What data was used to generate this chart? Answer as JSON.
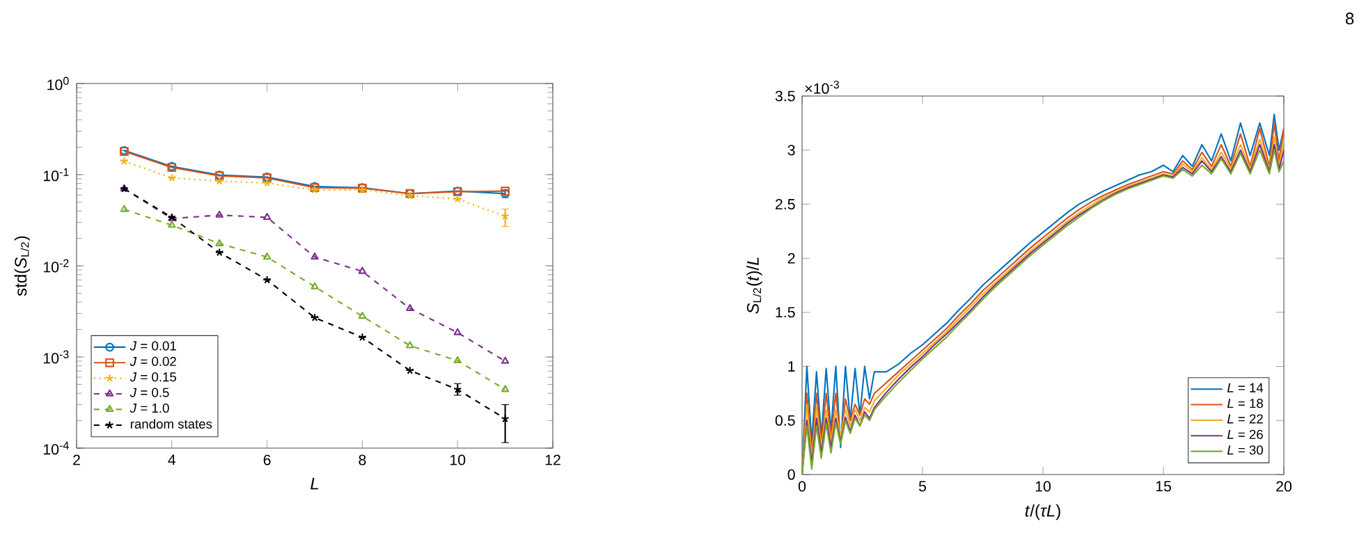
{
  "chart_data": [
    {
      "type": "line",
      "x": [
        3,
        4,
        5,
        6,
        7,
        8,
        9,
        10,
        11
      ],
      "log": "y",
      "legend": "bottom left",
      "xlim": [
        2,
        12
      ],
      "xticks": [
        2,
        4,
        6,
        8,
        10,
        12
      ],
      "ylim": [
        0.0001,
        1
      ],
      "yticks": [
        {
          "value": 0.0001,
          "label": "10$^{-4}$"
        },
        {
          "value": 0.001,
          "label": "10$^{-3}$"
        },
        {
          "value": 0.01,
          "label": "10$^{-2}$"
        },
        {
          "value": 0.1,
          "label": "10$^{-1}$"
        },
        {
          "value": 1,
          "label": "10$^{0}$"
        }
      ],
      "xlabel": "*L*",
      "ylabel": "std(*S*$_{L/2}$)",
      "series": [
        {
          "name": "*J* = 0.01",
          "color": "#0072bd",
          "marker": "circle",
          "line_style": "solid",
          "values": [
            0.184,
            0.123,
            0.099,
            0.094,
            0.074,
            0.072,
            0.062,
            0.066,
            0.062
          ],
          "errors": [
            null,
            null,
            null,
            null,
            null,
            null,
            null,
            null,
            [
              0.056,
              0.068
            ]
          ]
        },
        {
          "name": "*J* = 0.02",
          "color": "#d95319",
          "marker": "square",
          "line_style": "solid",
          "values": [
            0.18,
            0.12,
            0.097,
            0.092,
            0.072,
            0.071,
            0.062,
            0.065,
            0.066
          ]
        },
        {
          "name": "*J* = 0.15",
          "color": "#edb120",
          "marker": "cross",
          "line_style": "dotted",
          "values": [
            0.141,
            0.092,
            0.085,
            0.081,
            0.068,
            0.068,
            0.059,
            0.054,
            0.035
          ],
          "errors": [
            null,
            null,
            null,
            null,
            null,
            null,
            null,
            null,
            [
              0.027,
              0.042
            ]
          ]
        },
        {
          "name": "*J* = 0.5",
          "color": "#7e2f8e",
          "marker": "triangle",
          "line_style": "dashed",
          "values": [
            0.07,
            0.033,
            0.036,
            0.034,
            0.0125,
            0.0087,
            0.0034,
            0.00185,
            0.0009
          ]
        },
        {
          "name": "*J* = 1.0",
          "color": "#77ac30",
          "marker": "triangle",
          "line_style": "dashed",
          "values": [
            0.0415,
            0.0279,
            0.0175,
            0.0125,
            0.0059,
            0.0028,
            0.00133,
            0.00091,
            0.00044
          ]
        },
        {
          "name": "random states",
          "color": "#000000",
          "marker": "cross",
          "line_style": "dashed",
          "values": [
            0.07,
            0.034,
            0.014,
            0.007,
            0.0027,
            0.00164,
            0.00071,
            0.00044,
            0.00021
          ],
          "errors": [
            null,
            null,
            null,
            null,
            null,
            null,
            null,
            [
              0.00038,
              0.00051
            ],
            [
              0.000115,
              0.0003
            ]
          ]
        }
      ]
    },
    {
      "type": "line",
      "legend": "bottom right",
      "xlim": [
        0,
        20
      ],
      "xticks": [
        0,
        5,
        10,
        15,
        20
      ],
      "ylim": [
        0,
        3.5
      ],
      "yticks": [
        0,
        0.5,
        1,
        1.5,
        2,
        2.5,
        3,
        3.5
      ],
      "xlabel": "*t*/(*τL*)",
      "ylabel": "*S*$_{L/2}$(*t*)/*L*",
      "annotations": [
        "×10$^{-3}$",
        "8"
      ],
      "x": [
        0,
        0.2,
        0.4,
        0.6,
        0.8,
        1.0,
        1.2,
        1.4,
        1.6,
        1.8,
        2.0,
        2.2,
        2.4,
        2.6,
        2.8,
        3.0,
        3.5,
        4,
        4.5,
        5,
        5.5,
        6,
        6.5,
        7,
        7.5,
        8,
        8.5,
        9,
        9.5,
        10,
        10.5,
        11,
        11.5,
        12,
        12.5,
        13,
        13.5,
        14,
        14.5,
        15,
        15.4,
        15.8,
        16.2,
        16.6,
        17,
        17.4,
        17.8,
        18.2,
        18.6,
        19,
        19.4,
        19.6,
        19.8,
        20
      ],
      "series": [
        {
          "name": "*L* = 14",
          "color": "#0072bd",
          "values": [
            0,
            1.0,
            0.3,
            0.95,
            0.35,
            0.98,
            0.4,
            1.0,
            0.25,
            1.0,
            0.5,
            0.98,
            0.55,
            1.0,
            0.7,
            0.95,
            0.95,
            1.02,
            1.12,
            1.2,
            1.3,
            1.4,
            1.52,
            1.63,
            1.75,
            1.85,
            1.95,
            2.05,
            2.15,
            2.24,
            2.33,
            2.42,
            2.5,
            2.56,
            2.62,
            2.67,
            2.72,
            2.77,
            2.8,
            2.86,
            2.8,
            2.95,
            2.85,
            3.05,
            2.9,
            3.15,
            2.9,
            3.25,
            2.95,
            3.25,
            2.95,
            3.33,
            3.0,
            3.2
          ]
        },
        {
          "name": "*L* = 18",
          "color": "#d95319",
          "values": [
            0,
            0.75,
            0.2,
            0.75,
            0.3,
            0.75,
            0.35,
            0.75,
            0.3,
            0.7,
            0.5,
            0.65,
            0.55,
            0.7,
            0.65,
            0.75,
            0.85,
            0.95,
            1.05,
            1.15,
            1.25,
            1.35,
            1.47,
            1.58,
            1.7,
            1.8,
            1.9,
            2.0,
            2.1,
            2.19,
            2.28,
            2.37,
            2.45,
            2.52,
            2.58,
            2.63,
            2.68,
            2.72,
            2.76,
            2.8,
            2.78,
            2.9,
            2.82,
            2.98,
            2.85,
            3.05,
            2.85,
            3.15,
            2.85,
            3.2,
            2.85,
            3.25,
            2.9,
            3.2
          ]
        },
        {
          "name": "*L* = 22",
          "color": "#edb120",
          "values": [
            0,
            0.65,
            0.15,
            0.62,
            0.25,
            0.6,
            0.3,
            0.6,
            0.35,
            0.6,
            0.45,
            0.6,
            0.5,
            0.62,
            0.58,
            0.68,
            0.8,
            0.92,
            1.02,
            1.12,
            1.22,
            1.32,
            1.44,
            1.55,
            1.67,
            1.77,
            1.87,
            1.97,
            2.07,
            2.16,
            2.25,
            2.34,
            2.42,
            2.49,
            2.56,
            2.61,
            2.66,
            2.7,
            2.74,
            2.78,
            2.76,
            2.87,
            2.8,
            2.93,
            2.82,
            2.98,
            2.83,
            3.05,
            2.83,
            3.1,
            2.82,
            3.12,
            2.85,
            3.1
          ]
        },
        {
          "name": "*L* = 26",
          "color": "#7e2f8e",
          "values": [
            0,
            0.5,
            0.1,
            0.52,
            0.2,
            0.52,
            0.25,
            0.52,
            0.3,
            0.53,
            0.4,
            0.55,
            0.45,
            0.58,
            0.52,
            0.62,
            0.76,
            0.88,
            0.99,
            1.09,
            1.2,
            1.3,
            1.41,
            1.52,
            1.64,
            1.75,
            1.85,
            1.95,
            2.05,
            2.14,
            2.23,
            2.32,
            2.4,
            2.47,
            2.54,
            2.6,
            2.65,
            2.69,
            2.73,
            2.77,
            2.75,
            2.84,
            2.78,
            2.9,
            2.8,
            2.94,
            2.8,
            3.0,
            2.8,
            3.05,
            2.8,
            3.05,
            2.82,
            3.0
          ]
        },
        {
          "name": "*L* = 30",
          "color": "#77ac30",
          "values": [
            0,
            0.45,
            0.05,
            0.45,
            0.15,
            0.47,
            0.2,
            0.48,
            0.28,
            0.5,
            0.38,
            0.52,
            0.45,
            0.55,
            0.5,
            0.6,
            0.73,
            0.85,
            0.96,
            1.07,
            1.17,
            1.27,
            1.39,
            1.5,
            1.62,
            1.73,
            1.83,
            1.93,
            2.03,
            2.12,
            2.21,
            2.3,
            2.38,
            2.46,
            2.53,
            2.59,
            2.64,
            2.68,
            2.72,
            2.76,
            2.74,
            2.82,
            2.76,
            2.86,
            2.78,
            2.92,
            2.78,
            2.97,
            2.78,
            3.0,
            2.78,
            3.0,
            2.8,
            2.9
          ]
        }
      ]
    }
  ]
}
